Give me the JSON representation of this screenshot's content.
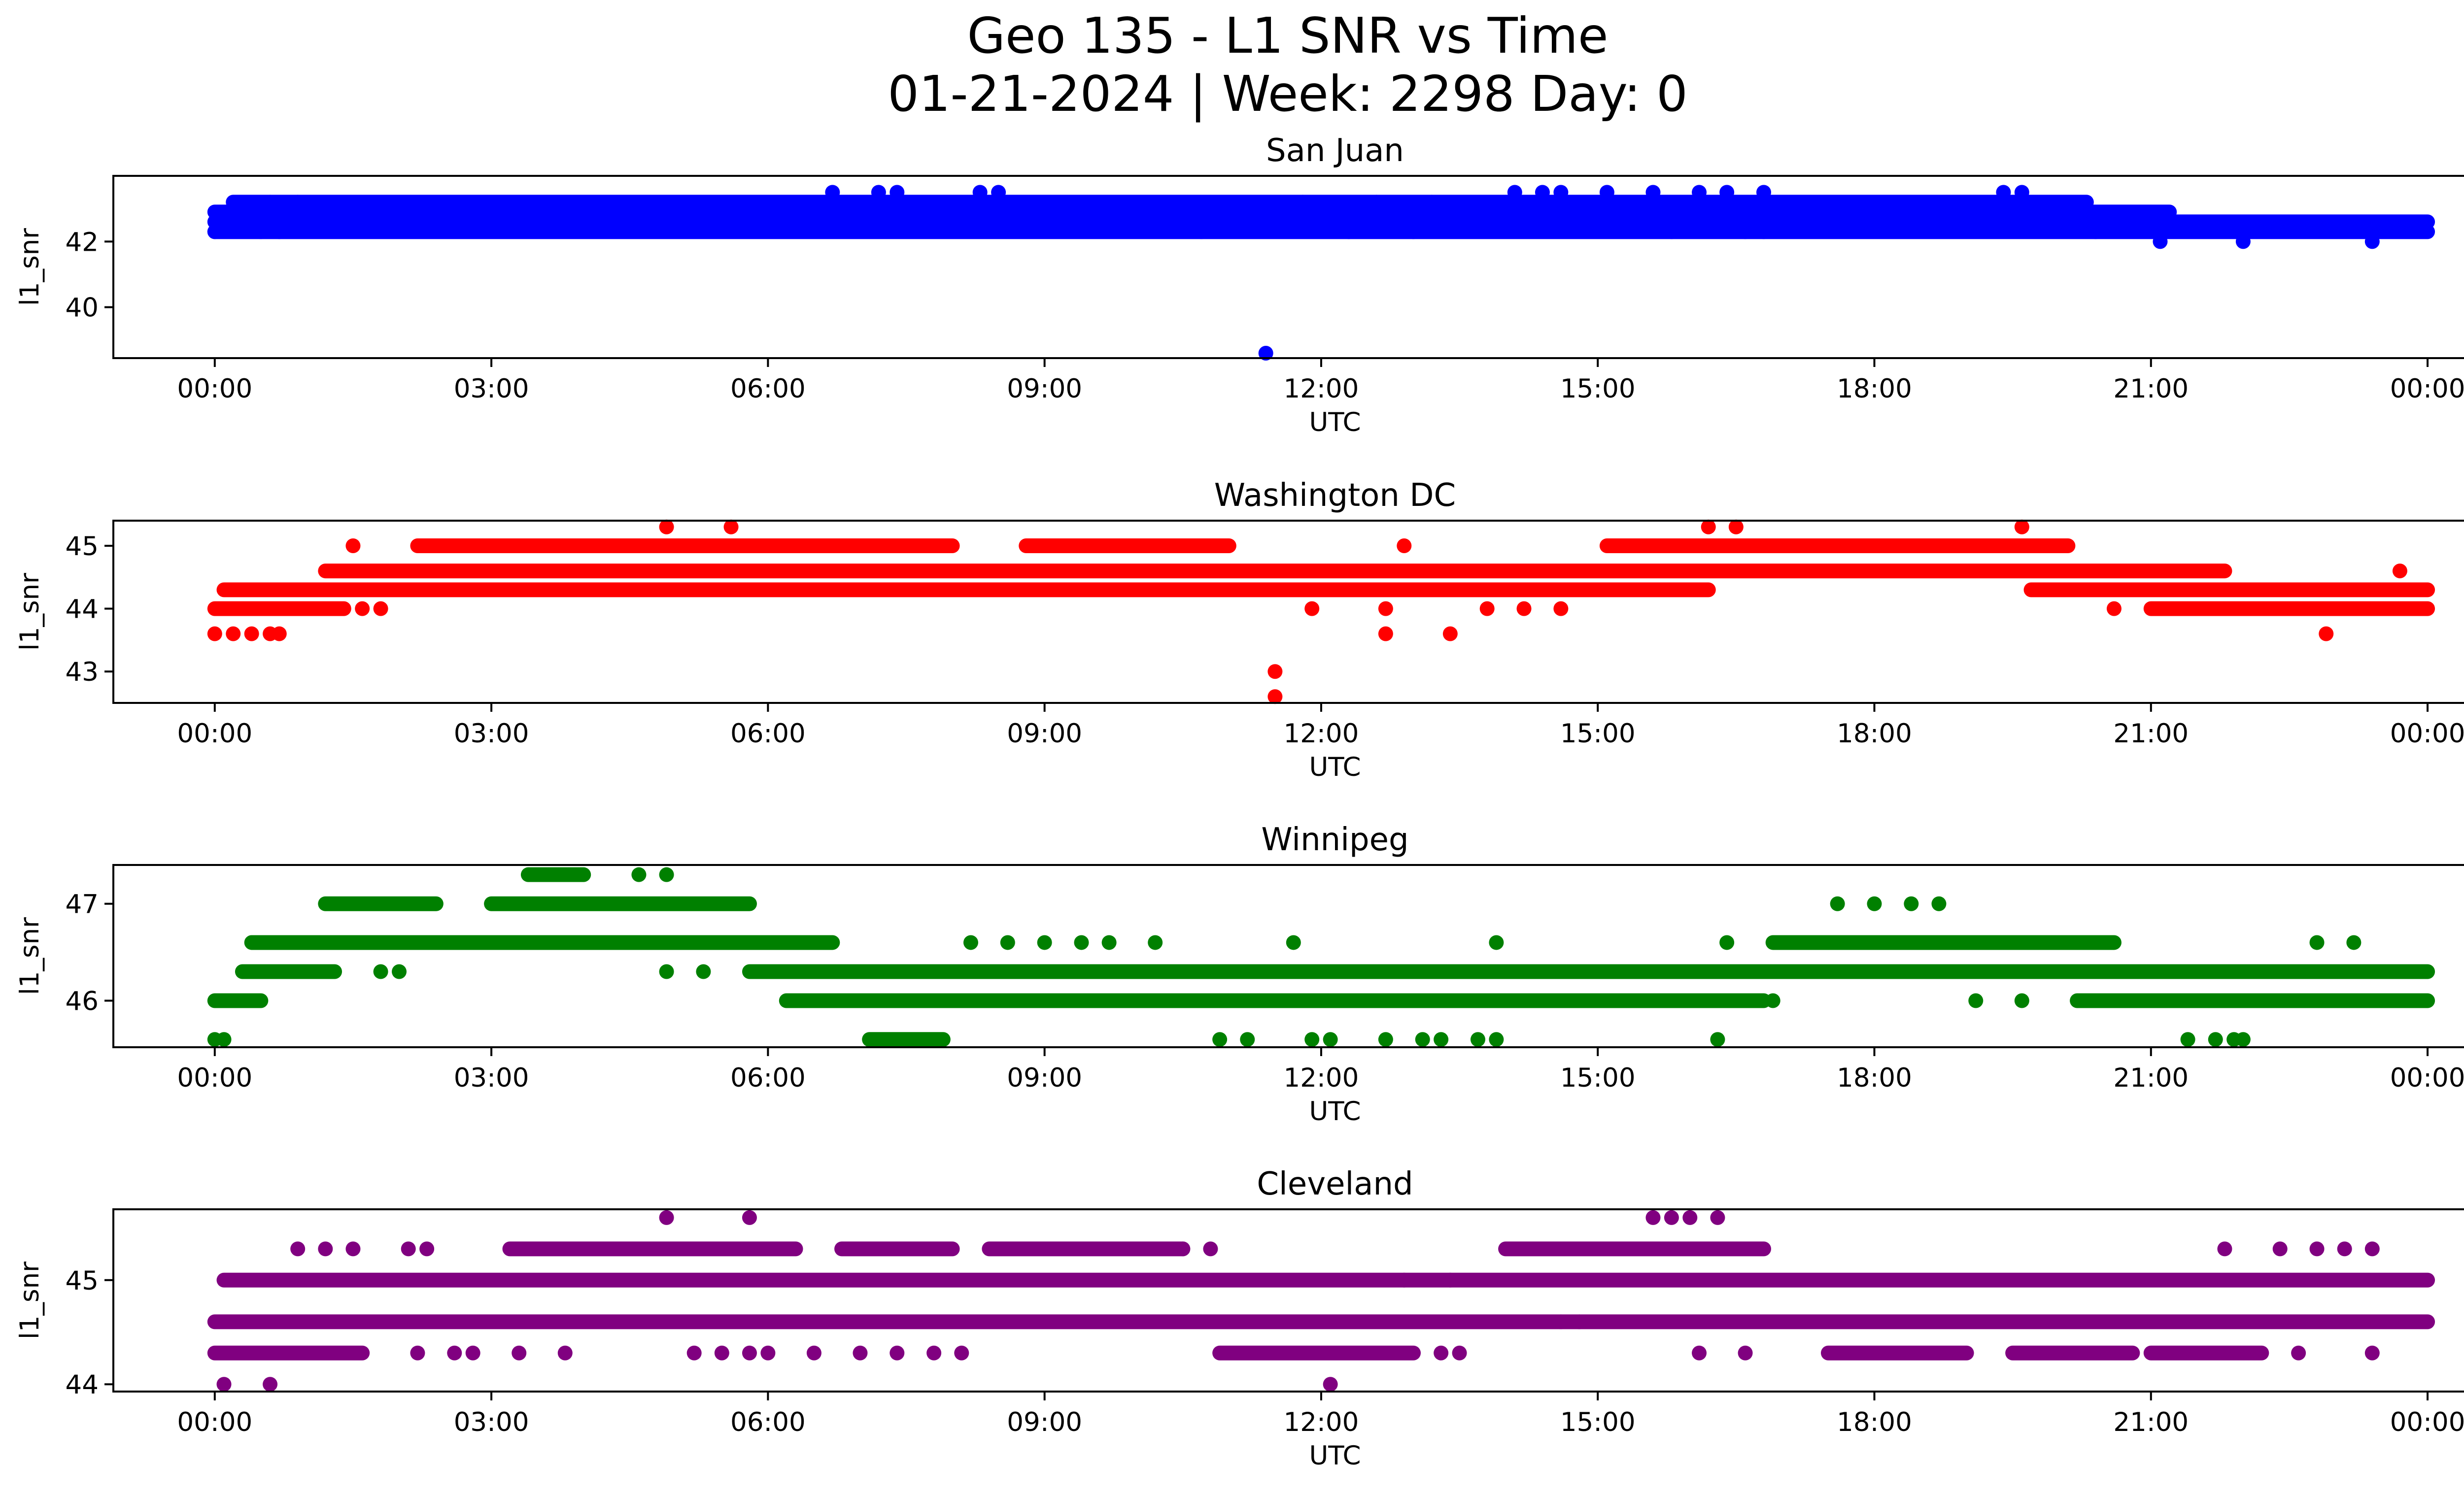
{
  "title": {
    "line1": "Geo 135 - L1 SNR vs Time",
    "line2": "01-21-2024 | Week: 2298 Day: 0"
  },
  "chart_data": [
    {
      "type": "scatter",
      "title": "San Juan",
      "xlabel": "UTC",
      "ylabel": "l1_snr",
      "color": "#0000ff",
      "xlim": [
        -1.1,
        25.4
      ],
      "ylim": [
        38.45,
        44.0
      ],
      "x_ticks": [
        "00:00",
        "03:00",
        "06:00",
        "09:00",
        "12:00",
        "15:00",
        "18:00",
        "21:00",
        "00:00"
      ],
      "x_tick_hours": [
        0,
        3,
        6,
        9,
        12,
        15,
        18,
        21,
        24
      ],
      "y_ticks": [
        40,
        42
      ],
      "dense_bands": [
        {
          "y": 42.6,
          "x_range": [
            0.0,
            24.0
          ]
        },
        {
          "y": 42.9,
          "x_range": [
            0.0,
            21.2
          ]
        },
        {
          "y": 43.2,
          "x_range": [
            0.2,
            20.3
          ]
        },
        {
          "y": 42.3,
          "x_range": [
            0.0,
            24.0
          ]
        }
      ],
      "points": [
        [
          0.0,
          42.3
        ],
        [
          0.5,
          42.3
        ],
        [
          0.7,
          42.3
        ],
        [
          0.6,
          43.2
        ],
        [
          0.9,
          43.2
        ],
        [
          11.4,
          38.6
        ],
        [
          10.7,
          42.3
        ],
        [
          12.3,
          42.3
        ],
        [
          13.0,
          42.3
        ],
        [
          15.8,
          42.3
        ],
        [
          16.6,
          42.3
        ],
        [
          16.8,
          42.3
        ],
        [
          20.4,
          42.3
        ],
        [
          21.1,
          42.0
        ],
        [
          22.0,
          42.0
        ],
        [
          23.4,
          42.0
        ],
        [
          6.7,
          43.5
        ],
        [
          7.2,
          43.5
        ],
        [
          7.4,
          43.5
        ],
        [
          8.3,
          43.5
        ],
        [
          8.5,
          43.5
        ],
        [
          14.1,
          43.5
        ],
        [
          14.4,
          43.5
        ],
        [
          14.6,
          43.5
        ],
        [
          15.1,
          43.5
        ],
        [
          15.6,
          43.5
        ],
        [
          16.1,
          43.5
        ],
        [
          16.4,
          43.5
        ],
        [
          16.8,
          43.5
        ],
        [
          19.4,
          43.5
        ],
        [
          19.6,
          43.5
        ],
        [
          11.8,
          43.2
        ],
        [
          12.6,
          43.2
        ],
        [
          13.2,
          43.2
        ],
        [
          14.3,
          42.6
        ],
        [
          14.8,
          42.6
        ],
        [
          9.2,
          42.6
        ],
        [
          7.9,
          42.6
        ]
      ]
    },
    {
      "type": "scatter",
      "title": "Washington DC",
      "xlabel": "UTC",
      "ylabel": "l1_snr",
      "color": "#ff0000",
      "xlim": [
        -1.1,
        25.4
      ],
      "ylim": [
        42.5,
        45.4
      ],
      "x_ticks": [
        "00:00",
        "03:00",
        "06:00",
        "09:00",
        "12:00",
        "15:00",
        "18:00",
        "21:00",
        "00:00"
      ],
      "x_tick_hours": [
        0,
        3,
        6,
        9,
        12,
        15,
        18,
        21,
        24
      ],
      "y_ticks": [
        43,
        44,
        45
      ],
      "dense_bands": [
        {
          "y": 44.0,
          "x_range": [
            0.0,
            1.4
          ]
        },
        {
          "y": 44.3,
          "x_range": [
            0.1,
            16.2
          ]
        },
        {
          "y": 44.6,
          "x_range": [
            1.2,
            21.8
          ]
        },
        {
          "y": 45.0,
          "x_range": [
            2.2,
            8.0
          ]
        },
        {
          "y": 45.0,
          "x_range": [
            8.8,
            11.0
          ]
        },
        {
          "y": 45.0,
          "x_range": [
            15.1,
            20.1
          ]
        },
        {
          "y": 44.3,
          "x_range": [
            19.7,
            24.0
          ]
        },
        {
          "y": 44.0,
          "x_range": [
            21.0,
            24.0
          ]
        }
      ],
      "points": [
        [
          0.0,
          43.6
        ],
        [
          0.2,
          43.6
        ],
        [
          0.4,
          43.6
        ],
        [
          0.6,
          43.6
        ],
        [
          0.7,
          43.6
        ],
        [
          11.5,
          43.0
        ],
        [
          11.5,
          42.6
        ],
        [
          12.7,
          43.6
        ],
        [
          13.4,
          43.6
        ],
        [
          22.9,
          43.6
        ],
        [
          4.9,
          45.3
        ],
        [
          5.6,
          45.3
        ],
        [
          16.2,
          45.3
        ],
        [
          16.5,
          45.3
        ],
        [
          19.6,
          45.3
        ],
        [
          1.5,
          45.0
        ],
        [
          12.9,
          45.0
        ],
        [
          11.9,
          44.0
        ],
        [
          12.7,
          44.0
        ],
        [
          13.8,
          44.0
        ],
        [
          14.2,
          44.0
        ],
        [
          14.6,
          44.0
        ],
        [
          1.6,
          44.0
        ],
        [
          1.8,
          44.0
        ],
        [
          20.6,
          44.0
        ],
        [
          23.7,
          44.6
        ]
      ]
    },
    {
      "type": "scatter",
      "title": "Winnipeg",
      "xlabel": "UTC",
      "ylabel": "l1_snr",
      "color": "#008000",
      "xlim": [
        -1.1,
        25.4
      ],
      "ylim": [
        45.52,
        47.4
      ],
      "x_ticks": [
        "00:00",
        "03:00",
        "06:00",
        "09:00",
        "12:00",
        "15:00",
        "18:00",
        "21:00",
        "00:00"
      ],
      "x_tick_hours": [
        0,
        3,
        6,
        9,
        12,
        15,
        18,
        21,
        24
      ],
      "y_ticks": [
        46,
        47
      ],
      "dense_bands": [
        {
          "y": 46.0,
          "x_range": [
            0.0,
            0.5
          ]
        },
        {
          "y": 46.3,
          "x_range": [
            0.3,
            1.3
          ]
        },
        {
          "y": 46.6,
          "x_range": [
            0.4,
            6.7
          ]
        },
        {
          "y": 47.0,
          "x_range": [
            1.2,
            2.4
          ]
        },
        {
          "y": 47.0,
          "x_range": [
            3.0,
            5.8
          ]
        },
        {
          "y": 47.3,
          "x_range": [
            3.4,
            4.0
          ]
        },
        {
          "y": 46.3,
          "x_range": [
            5.8,
            24.0
          ]
        },
        {
          "y": 46.0,
          "x_range": [
            6.2,
            16.8
          ]
        },
        {
          "y": 45.6,
          "x_range": [
            7.1,
            7.9
          ]
        },
        {
          "y": 46.6,
          "x_range": [
            16.9,
            20.6
          ]
        },
        {
          "y": 46.0,
          "x_range": [
            20.2,
            24.0
          ]
        }
      ],
      "points": [
        [
          0.0,
          45.6
        ],
        [
          0.1,
          45.6
        ],
        [
          4.6,
          47.3
        ],
        [
          4.9,
          47.3
        ],
        [
          4.9,
          46.3
        ],
        [
          5.3,
          46.3
        ],
        [
          2.0,
          46.3
        ],
        [
          1.8,
          46.3
        ],
        [
          8.2,
          46.6
        ],
        [
          8.6,
          46.6
        ],
        [
          9.0,
          46.6
        ],
        [
          9.4,
          46.6
        ],
        [
          9.7,
          46.6
        ],
        [
          10.2,
          46.6
        ],
        [
          11.7,
          46.6
        ],
        [
          13.9,
          46.6
        ],
        [
          16.4,
          46.6
        ],
        [
          17.6,
          47.0
        ],
        [
          18.0,
          47.0
        ],
        [
          18.4,
          47.0
        ],
        [
          18.7,
          47.0
        ],
        [
          19.1,
          46.0
        ],
        [
          19.6,
          46.0
        ],
        [
          10.9,
          45.6
        ],
        [
          11.2,
          45.6
        ],
        [
          11.9,
          45.6
        ],
        [
          12.1,
          45.6
        ],
        [
          12.7,
          45.6
        ],
        [
          13.1,
          45.6
        ],
        [
          13.3,
          45.6
        ],
        [
          13.7,
          45.6
        ],
        [
          13.9,
          45.6
        ],
        [
          16.3,
          45.6
        ],
        [
          21.4,
          45.6
        ],
        [
          21.7,
          45.6
        ],
        [
          21.9,
          45.6
        ],
        [
          22.0,
          45.6
        ],
        [
          22.8,
          46.6
        ],
        [
          23.2,
          46.6
        ],
        [
          16.6,
          46.0
        ],
        [
          16.9,
          46.0
        ]
      ]
    },
    {
      "type": "scatter",
      "title": "Cleveland",
      "xlabel": "UTC",
      "ylabel": "l1_snr",
      "color": "#800080",
      "xlim": [
        -1.1,
        25.4
      ],
      "ylim": [
        43.93,
        45.68
      ],
      "x_ticks": [
        "00:00",
        "03:00",
        "06:00",
        "09:00",
        "12:00",
        "15:00",
        "18:00",
        "21:00",
        "00:00"
      ],
      "x_tick_hours": [
        0,
        3,
        6,
        9,
        12,
        15,
        18,
        21,
        24
      ],
      "y_ticks": [
        44,
        45
      ],
      "dense_bands": [
        {
          "y": 44.6,
          "x_range": [
            0.0,
            24.0
          ]
        },
        {
          "y": 45.0,
          "x_range": [
            0.1,
            24.0
          ]
        },
        {
          "y": 44.3,
          "x_range": [
            0.0,
            1.6
          ]
        },
        {
          "y": 45.3,
          "x_range": [
            3.2,
            6.3
          ]
        },
        {
          "y": 45.3,
          "x_range": [
            6.8,
            8.0
          ]
        },
        {
          "y": 45.3,
          "x_range": [
            8.4,
            10.5
          ]
        },
        {
          "y": 44.3,
          "x_range": [
            10.9,
            13.0
          ]
        },
        {
          "y": 45.3,
          "x_range": [
            14.0,
            16.8
          ]
        },
        {
          "y": 44.3,
          "x_range": [
            17.5,
            19.0
          ]
        },
        {
          "y": 44.3,
          "x_range": [
            19.5,
            20.8
          ]
        },
        {
          "y": 44.3,
          "x_range": [
            21.0,
            22.2
          ]
        }
      ],
      "points": [
        [
          0.1,
          44.0
        ],
        [
          0.6,
          44.0
        ],
        [
          12.1,
          44.0
        ],
        [
          4.9,
          45.6
        ],
        [
          5.8,
          45.6
        ],
        [
          15.6,
          45.6
        ],
        [
          15.8,
          45.6
        ],
        [
          16.0,
          45.6
        ],
        [
          16.3,
          45.6
        ],
        [
          0.9,
          45.3
        ],
        [
          1.2,
          45.3
        ],
        [
          1.5,
          45.3
        ],
        [
          2.1,
          45.3
        ],
        [
          2.3,
          45.3
        ],
        [
          2.2,
          44.3
        ],
        [
          2.6,
          44.3
        ],
        [
          2.8,
          44.3
        ],
        [
          3.3,
          44.3
        ],
        [
          3.8,
          44.3
        ],
        [
          5.2,
          44.3
        ],
        [
          5.5,
          44.3
        ],
        [
          5.8,
          44.3
        ],
        [
          6.0,
          44.3
        ],
        [
          6.5,
          44.3
        ],
        [
          7.0,
          44.3
        ],
        [
          7.4,
          44.3
        ],
        [
          7.8,
          44.3
        ],
        [
          8.1,
          44.3
        ],
        [
          13.3,
          44.3
        ],
        [
          13.5,
          44.3
        ],
        [
          16.1,
          44.3
        ],
        [
          16.6,
          44.3
        ],
        [
          14.6,
          44.6
        ],
        [
          14.8,
          44.6
        ],
        [
          13.4,
          45.0
        ],
        [
          12.9,
          45.0
        ],
        [
          22.4,
          45.3
        ],
        [
          22.8,
          45.3
        ],
        [
          23.1,
          45.3
        ],
        [
          23.4,
          45.3
        ],
        [
          22.6,
          44.3
        ],
        [
          23.4,
          44.3
        ],
        [
          21.8,
          45.3
        ],
        [
          10.5,
          45.3
        ],
        [
          10.8,
          45.3
        ]
      ]
    }
  ]
}
